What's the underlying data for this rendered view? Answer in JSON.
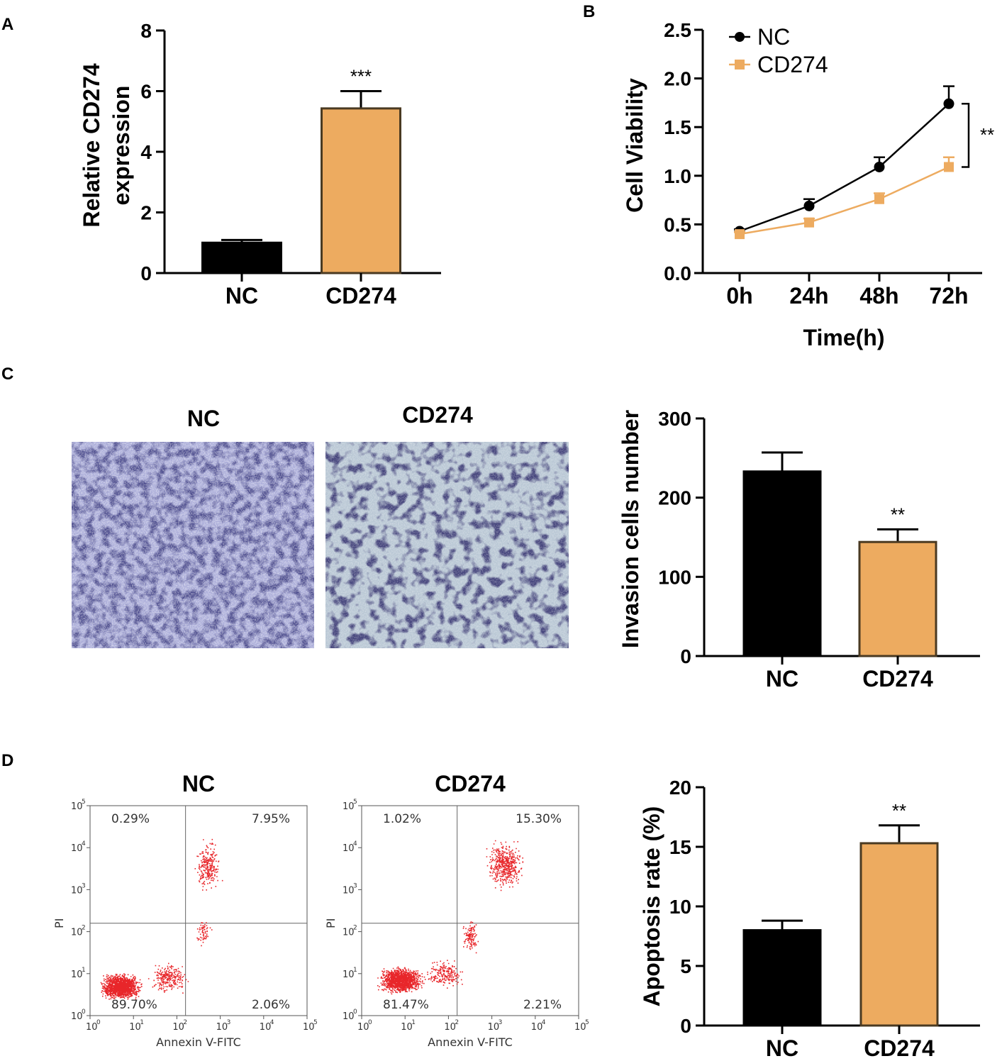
{
  "colors": {
    "nc": "#000000",
    "cd274": "#EDAB60",
    "bar_edge": "#4a3a22",
    "dots": "#e8262a"
  },
  "chart_data": [
    {
      "id": "A",
      "panel_label": "A",
      "type": "bar",
      "categories": [
        "NC",
        "CD274"
      ],
      "values": [
        1.0,
        5.43
      ],
      "errors": [
        0.09,
        0.57
      ],
      "significance": [
        "",
        "***"
      ],
      "ylabel_line1": "Relative CD274",
      "ylabel_line2": "expression",
      "ylim": [
        0,
        8
      ],
      "yticks": [
        0,
        2,
        4,
        6,
        8
      ]
    },
    {
      "id": "B",
      "panel_label": "B",
      "type": "line",
      "x": [
        "0h",
        "24h",
        "48h",
        "72h"
      ],
      "series": [
        {
          "name": "NC",
          "values": [
            0.43,
            0.69,
            1.09,
            1.74
          ],
          "errors": [
            0.02,
            0.07,
            0.1,
            0.18
          ]
        },
        {
          "name": "CD274",
          "values": [
            0.4,
            0.52,
            0.76,
            1.09
          ],
          "errors": [
            0.02,
            0.04,
            0.06,
            0.1
          ]
        }
      ],
      "significance": "**",
      "xlabel": "Time(h)",
      "ylabel": "Cell Viability",
      "ylim": [
        0,
        2.5
      ],
      "yticks": [
        "0.0",
        "0.5",
        "1.0",
        "1.5",
        "2.0",
        "2.5"
      ],
      "legend": "top-left"
    },
    {
      "id": "C",
      "panel_label": "C",
      "type": "bar",
      "categories": [
        "NC",
        "CD274"
      ],
      "values": [
        233,
        144
      ],
      "errors": [
        24,
        16
      ],
      "significance": [
        "",
        "**"
      ],
      "ylabel": "Invasion cells number",
      "ylim": [
        0,
        300
      ],
      "yticks": [
        0,
        100,
        200,
        300
      ]
    },
    {
      "id": "D",
      "panel_label": "D",
      "type": "bar",
      "categories": [
        "NC",
        "CD274"
      ],
      "values": [
        8.0,
        15.3
      ],
      "errors": [
        0.8,
        1.5
      ],
      "significance": [
        "",
        "**"
      ],
      "ylabel": "Apoptosis rate (%)",
      "ylim": [
        0,
        20
      ],
      "yticks": [
        0,
        5,
        10,
        15,
        20
      ]
    }
  ],
  "micrographs": {
    "nc_title": "NC",
    "cd274_title": "CD274"
  },
  "flow": {
    "xlabel": "Annexin V-FITC",
    "ylabel": "PI",
    "tick_base": "10",
    "tick_exps": [
      "0",
      "1",
      "2",
      "3",
      "4",
      "5"
    ],
    "plots": [
      {
        "title": "NC",
        "q1": "0.29%",
        "q2": "7.95%",
        "q3": "2.06%",
        "q4": "89.70%"
      },
      {
        "title": "CD274",
        "q1": "1.02%",
        "q2": "15.30%",
        "q3": "2.21%",
        "q4": "81.47%"
      }
    ]
  }
}
